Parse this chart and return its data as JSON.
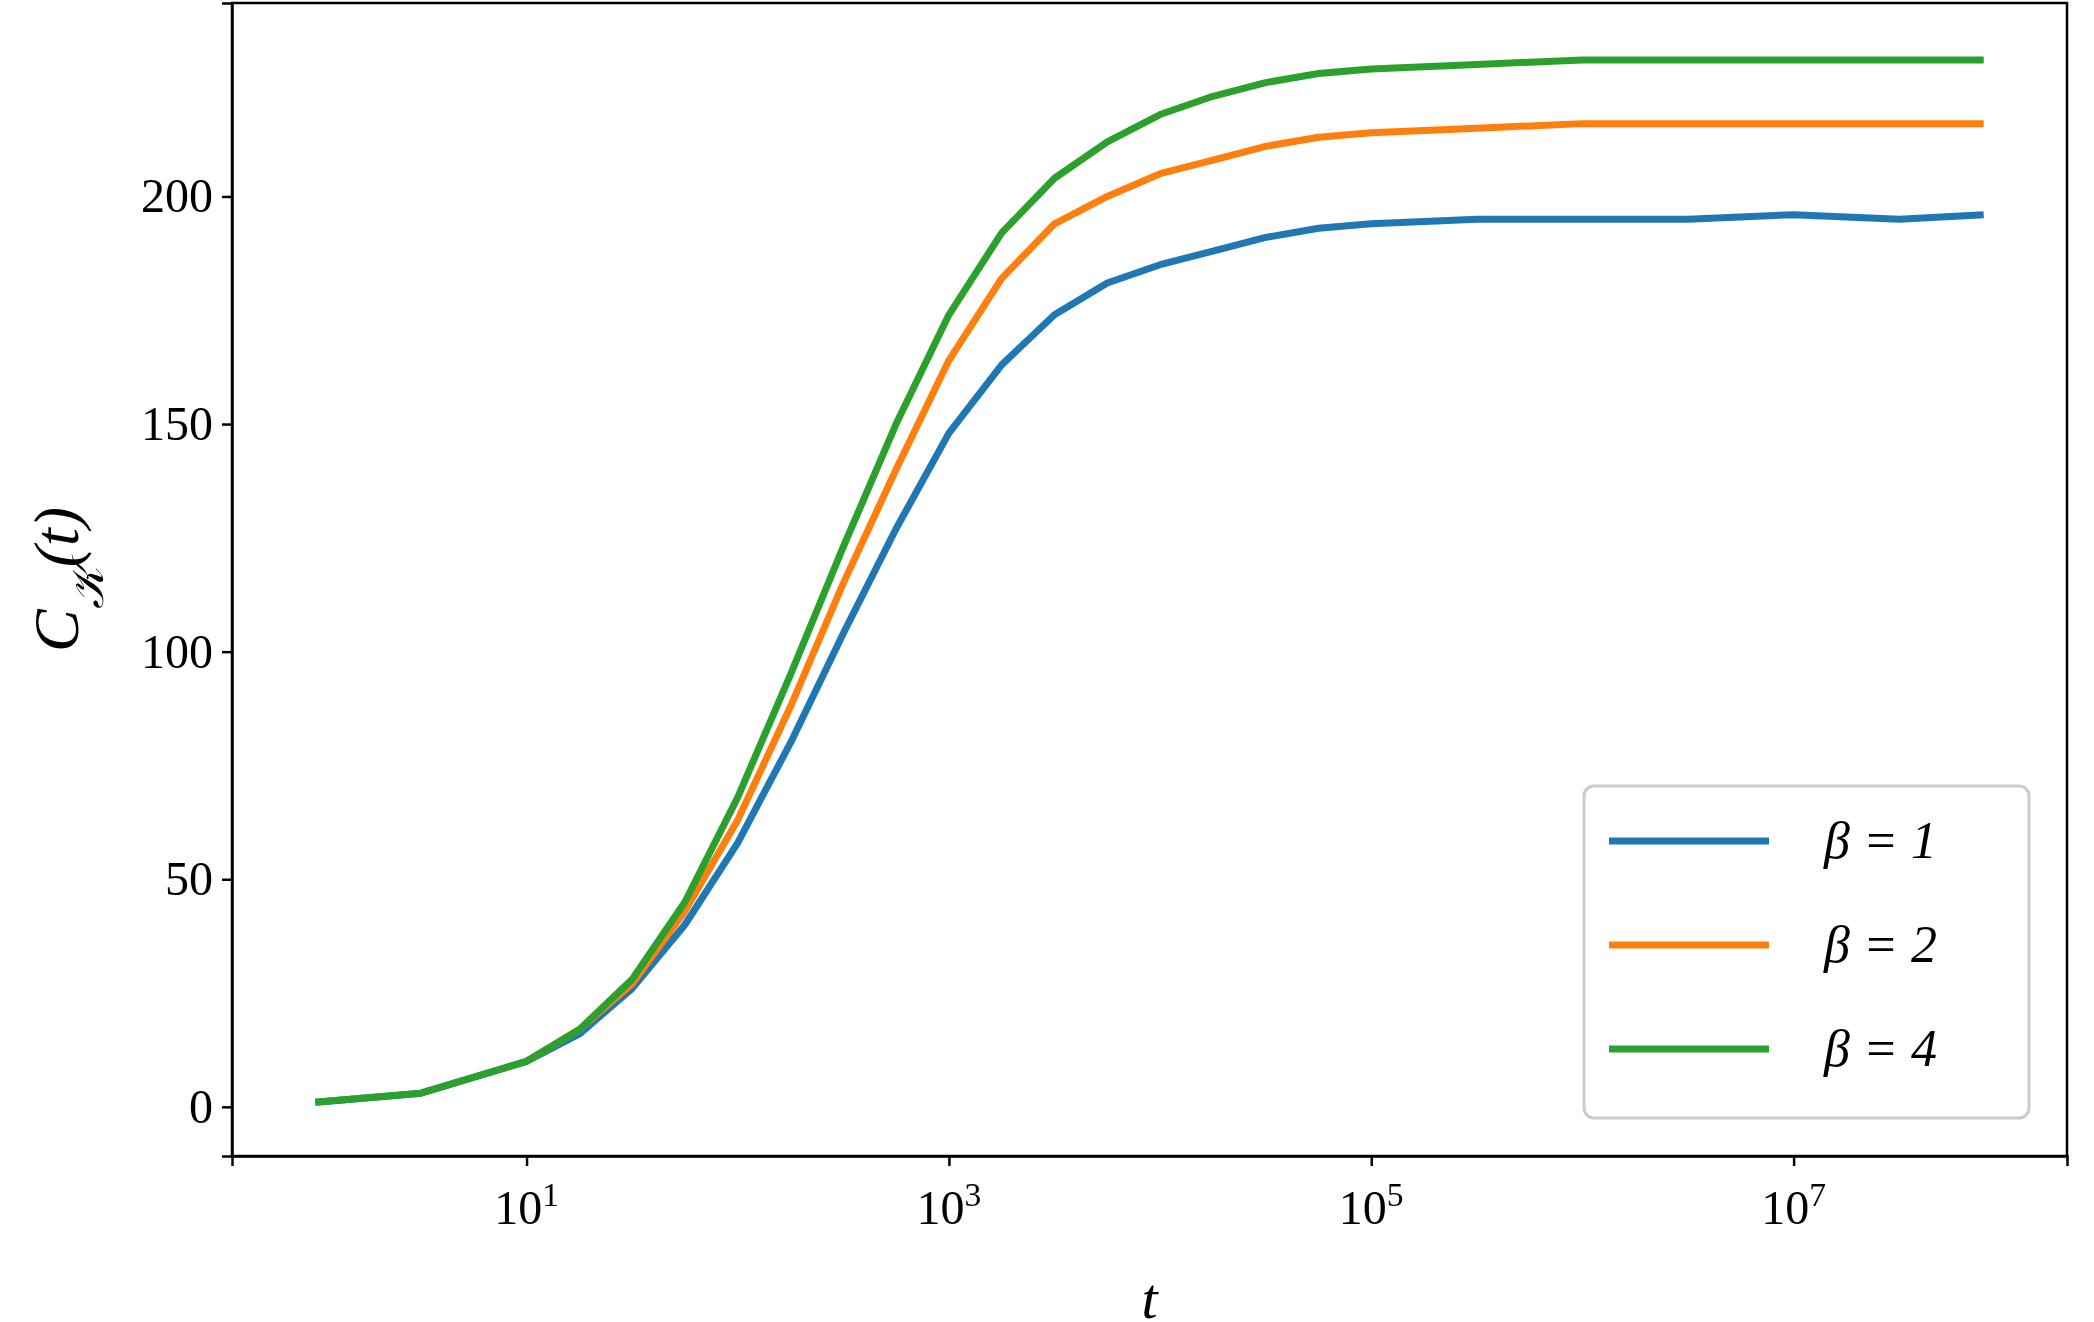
{
  "chart_data": {
    "type": "line",
    "xlabel": "t",
    "ylabel": "C$_{𝒦}$(t)",
    "log": "x",
    "x": [
      1,
      3.16,
      10,
      17.8,
      31.6,
      56.2,
      100,
      178,
      316,
      562,
      1000,
      1778,
      3162,
      5623,
      10000,
      17783,
      31623,
      56234,
      100000,
      316228,
      1000000,
      3162278,
      10000000,
      31622777,
      79432823
    ],
    "xlim": [
      0.403,
      197000000
    ],
    "ylim": [
      -10.8,
      242.5
    ],
    "xticks": [
      {
        "value": 10,
        "label": "10$^{1}$"
      },
      {
        "value": 1000,
        "label": "10$^{3}$"
      },
      {
        "value": 100000,
        "label": "10$^{5}$"
      },
      {
        "value": 10000000,
        "label": "10$^{7}$"
      }
    ],
    "yticks": [
      0,
      50,
      100,
      150,
      200
    ],
    "legend": "bottom right",
    "grid": false,
    "line_style": "solid",
    "marker": "none",
    "series": [
      {
        "name": "β = 1",
        "color": "#1f77b4",
        "values": [
          1,
          3,
          10,
          16,
          26,
          40,
          58,
          80,
          104,
          127,
          148,
          163,
          174,
          181,
          185,
          188,
          191,
          193,
          194,
          195,
          195,
          195,
          196,
          195,
          196
        ]
      },
      {
        "name": "β = 2",
        "color": "#ff7f0e",
        "values": [
          null,
          null,
          10,
          17,
          27,
          43,
          63,
          88,
          115,
          140,
          164,
          182,
          194,
          200,
          205,
          208,
          211,
          213,
          214,
          215,
          216,
          216,
          216,
          216,
          216
        ]
      },
      {
        "name": "β = 4",
        "color": "#2ca02c",
        "values": [
          1,
          3,
          10,
          17,
          28,
          45,
          68,
          95,
          123,
          150,
          174,
          192,
          204,
          212,
          218,
          222,
          225,
          227,
          228,
          229,
          230,
          230,
          230,
          230,
          230
        ]
      }
    ]
  }
}
